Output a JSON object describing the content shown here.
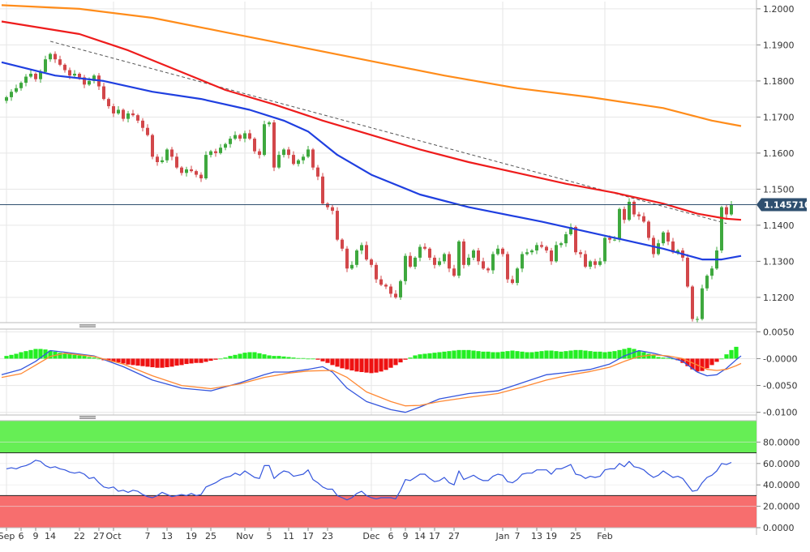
{
  "colors": {
    "bull": "#3ea83e",
    "bear": "#d2474a",
    "sma_fast": "#1f3fe0",
    "sma_mid": "#ee1c1c",
    "sma_slow": "#ff8c1a",
    "trendline": "#555555",
    "price_line": "#2f4f6f",
    "macd_pos": "#22ee22",
    "macd_neg": "#ee1111",
    "macd_line": "#3355dd",
    "signal_line": "#ff8833",
    "rsi_line": "#3355dd",
    "overbought": "#66ee55",
    "oversold": "#f76e6e",
    "grid": "#e6e6e6",
    "axis": "#bbbbbb"
  },
  "chart_data": [
    {
      "type": "candlestick",
      "title": "",
      "ylim": [
        1.113,
        1.202
      ],
      "yticks": [
        "1.2000",
        "1.1900",
        "1.1800",
        "1.1700",
        "1.1600",
        "1.1500",
        "1.1400",
        "1.1300",
        "1.1200"
      ],
      "last_price": "1.145710",
      "trendline": {
        "from": [
          9,
          1.191
        ],
        "to": [
          148,
          1.1405
        ]
      },
      "close": [
        1.1755,
        1.177,
        1.178,
        1.1795,
        1.1812,
        1.182,
        1.1805,
        1.1825,
        1.186,
        1.1875,
        1.186,
        1.1845,
        1.183,
        1.1815,
        1.182,
        1.181,
        1.179,
        1.18,
        1.1815,
        1.1785,
        1.175,
        1.173,
        1.171,
        1.172,
        1.1695,
        1.171,
        1.1705,
        1.169,
        1.167,
        1.165,
        1.159,
        1.1575,
        1.158,
        1.161,
        1.159,
        1.156,
        1.1545,
        1.1555,
        1.155,
        1.154,
        1.153,
        1.1595,
        1.1605,
        1.16,
        1.1615,
        1.1625,
        1.164,
        1.165,
        1.164,
        1.1655,
        1.164,
        1.1605,
        1.1595,
        1.168,
        1.1685,
        1.156,
        1.1595,
        1.161,
        1.1595,
        1.157,
        1.158,
        1.159,
        1.161,
        1.156,
        1.1535,
        1.146,
        1.145,
        1.144,
        1.136,
        1.1335,
        1.128,
        1.129,
        1.133,
        1.1345,
        1.1305,
        1.129,
        1.125,
        1.1235,
        1.123,
        1.121,
        1.12,
        1.1245,
        1.1315,
        1.1285,
        1.131,
        1.134,
        1.1335,
        1.131,
        1.129,
        1.13,
        1.132,
        1.128,
        1.126,
        1.1355,
        1.129,
        1.131,
        1.133,
        1.13,
        1.128,
        1.1275,
        1.132,
        1.1335,
        1.132,
        1.125,
        1.124,
        1.128,
        1.132,
        1.1325,
        1.133,
        1.1345,
        1.134,
        1.133,
        1.13,
        1.1345,
        1.135,
        1.1375,
        1.1395,
        1.1325,
        1.132,
        1.1285,
        1.13,
        1.129,
        1.13,
        1.1365,
        1.136,
        1.136,
        1.1445,
        1.1415,
        1.1465,
        1.143,
        1.1425,
        1.141,
        1.1365,
        1.132,
        1.135,
        1.138,
        1.1355,
        1.1325,
        1.133,
        1.131,
        1.123,
        1.114,
        1.114,
        1.1225,
        1.126,
        1.128,
        1.133,
        1.145,
        1.143,
        1.1457
      ],
      "series": [
        {
          "name": "",
          "type": "line",
          "color": "sma_fast",
          "points": [
            [
              -1,
              1.1852
            ],
            [
              10,
              1.1815
            ],
            [
              20,
              1.18
            ],
            [
              30,
              1.177
            ],
            [
              40,
              1.175
            ],
            [
              50,
              1.172
            ],
            [
              57,
              1.169
            ],
            [
              62,
              1.166
            ],
            [
              68,
              1.1595
            ],
            [
              75,
              1.154
            ],
            [
              85,
              1.1485
            ],
            [
              95,
              1.145
            ],
            [
              110,
              1.141
            ],
            [
              125,
              1.1365
            ],
            [
              135,
              1.1335
            ],
            [
              143,
              1.1305
            ],
            [
              147,
              1.1305
            ],
            [
              151,
              1.1315
            ]
          ]
        },
        {
          "name": "",
          "type": "line",
          "color": "sma_mid",
          "points": [
            [
              -1,
              1.1965
            ],
            [
              15,
              1.193
            ],
            [
              25,
              1.1885
            ],
            [
              35,
              1.183
            ],
            [
              45,
              1.1775
            ],
            [
              55,
              1.1735
            ],
            [
              65,
              1.169
            ],
            [
              75,
              1.165
            ],
            [
              85,
              1.161
            ],
            [
              95,
              1.1575
            ],
            [
              105,
              1.1545
            ],
            [
              115,
              1.1515
            ],
            [
              125,
              1.149
            ],
            [
              135,
              1.146
            ],
            [
              142,
              1.1432
            ],
            [
              148,
              1.1418
            ],
            [
              151,
              1.1415
            ]
          ]
        },
        {
          "name": "",
          "type": "line",
          "color": "sma_slow",
          "points": [
            [
              -1,
              1.201
            ],
            [
              15,
              1.2
            ],
            [
              30,
              1.1975
            ],
            [
              45,
              1.1935
            ],
            [
              60,
              1.1895
            ],
            [
              75,
              1.1855
            ],
            [
              90,
              1.1815
            ],
            [
              105,
              1.178
            ],
            [
              120,
              1.1755
            ],
            [
              135,
              1.1725
            ],
            [
              145,
              1.169
            ],
            [
              151,
              1.1675
            ]
          ]
        }
      ]
    },
    {
      "type": "macd",
      "ylim": [
        -0.0105,
        0.0055
      ],
      "yticks": [
        "0.0050",
        "-0.0000",
        "-0.0050",
        "-0.0100"
      ],
      "histogram": [
        0.0005,
        0.0007,
        0.0009,
        0.0012,
        0.0014,
        0.0016,
        0.0018,
        0.0018,
        0.0017,
        0.0015,
        0.0013,
        0.0011,
        0.001,
        0.0009,
        0.0007,
        0.0006,
        0.0005,
        0.0003,
        0.0002,
        0.0,
        -0.0003,
        -0.0004,
        -0.0006,
        -0.0007,
        -0.0009,
        -0.0011,
        -0.0012,
        -0.0013,
        -0.0014,
        -0.0015,
        -0.0016,
        -0.0017,
        -0.0017,
        -0.0016,
        -0.0015,
        -0.0013,
        -0.0012,
        -0.001,
        -0.0009,
        -0.0008,
        -0.0008,
        -0.0006,
        -0.0004,
        -0.0002,
        0.0,
        0.0002,
        0.0005,
        0.0007,
        0.0009,
        0.0011,
        0.0012,
        0.0012,
        0.001,
        0.0008,
        0.0006,
        0.0005,
        0.0005,
        0.0004,
        0.0003,
        0.0002,
        0.0001,
        0.0001,
        0.0,
        0.0,
        -0.0002,
        -0.0005,
        -0.0008,
        -0.0012,
        -0.0015,
        -0.0018,
        -0.002,
        -0.0022,
        -0.0024,
        -0.0025,
        -0.0026,
        -0.0027,
        -0.0026,
        -0.0024,
        -0.0021,
        -0.0017,
        -0.0012,
        -0.0007,
        -0.0002,
        0.0002,
        0.0006,
        0.0008,
        0.0009,
        0.001,
        0.0011,
        0.0012,
        0.0013,
        0.0014,
        0.0015,
        0.0016,
        0.0016,
        0.0016,
        0.0015,
        0.0014,
        0.0013,
        0.0013,
        0.0012,
        0.0012,
        0.0013,
        0.0014,
        0.0015,
        0.0014,
        0.0013,
        0.0012,
        0.0012,
        0.0013,
        0.0014,
        0.0015,
        0.0015,
        0.0014,
        0.0013,
        0.0014,
        0.0015,
        0.0016,
        0.0016,
        0.0015,
        0.0014,
        0.0013,
        0.0013,
        0.0012,
        0.0013,
        0.0014,
        0.0016,
        0.0018,
        0.002,
        0.0018,
        0.0015,
        0.0012,
        0.0009,
        0.0006,
        0.0003,
        0.0002,
        0.0001,
        0.0,
        -0.0003,
        -0.0008,
        -0.0014,
        -0.002,
        -0.0024,
        -0.0023,
        -0.0018,
        -0.0012,
        -0.0006,
        0.0,
        0.0008,
        0.0016,
        0.0022
      ],
      "series": [
        {
          "name": "",
          "color": "macd_line",
          "points": [
            [
              -1,
              -0.003
            ],
            [
              3,
              -0.002
            ],
            [
              6,
              -0.0005
            ],
            [
              9,
              0.0015
            ],
            [
              12,
              0.0012
            ],
            [
              18,
              0.0005
            ],
            [
              24,
              -0.0015
            ],
            [
              30,
              -0.004
            ],
            [
              36,
              -0.0055
            ],
            [
              42,
              -0.006
            ],
            [
              48,
              -0.0045
            ],
            [
              53,
              -0.003
            ],
            [
              55,
              -0.0025
            ],
            [
              58,
              -0.0025
            ],
            [
              62,
              -0.002
            ],
            [
              65,
              -0.0015
            ],
            [
              67,
              -0.0025
            ],
            [
              70,
              -0.0055
            ],
            [
              74,
              -0.008
            ],
            [
              79,
              -0.0095
            ],
            [
              82,
              -0.01
            ],
            [
              85,
              -0.009
            ],
            [
              89,
              -0.0075
            ],
            [
              95,
              -0.0065
            ],
            [
              101,
              -0.006
            ],
            [
              106,
              -0.0045
            ],
            [
              111,
              -0.003
            ],
            [
              116,
              -0.0025
            ],
            [
              120,
              -0.002
            ],
            [
              124,
              -0.001
            ],
            [
              127,
              0.0005
            ],
            [
              130,
              0.0015
            ],
            [
              133,
              0.001
            ],
            [
              136,
              0.0003
            ],
            [
              139,
              -0.0005
            ],
            [
              142,
              -0.0025
            ],
            [
              144,
              -0.0032
            ],
            [
              146,
              -0.003
            ],
            [
              148,
              -0.0018
            ],
            [
              150,
              -0.0002
            ],
            [
              151,
              0.0005
            ]
          ]
        },
        {
          "name": "",
          "color": "signal_line",
          "points": [
            [
              -1,
              -0.0035
            ],
            [
              3,
              -0.0028
            ],
            [
              6,
              -0.0012
            ],
            [
              9,
              0.0004
            ],
            [
              12,
              0.001
            ],
            [
              18,
              0.0004
            ],
            [
              24,
              -0.001
            ],
            [
              30,
              -0.0032
            ],
            [
              36,
              -0.005
            ],
            [
              42,
              -0.0056
            ],
            [
              48,
              -0.0047
            ],
            [
              53,
              -0.0035
            ],
            [
              58,
              -0.0027
            ],
            [
              62,
              -0.0023
            ],
            [
              67,
              -0.0022
            ],
            [
              70,
              -0.0035
            ],
            [
              74,
              -0.0062
            ],
            [
              79,
              -0.008
            ],
            [
              82,
              -0.0088
            ],
            [
              85,
              -0.0087
            ],
            [
              89,
              -0.008
            ],
            [
              95,
              -0.0072
            ],
            [
              101,
              -0.0065
            ],
            [
              106,
              -0.0053
            ],
            [
              111,
              -0.004
            ],
            [
              116,
              -0.003
            ],
            [
              120,
              -0.0024
            ],
            [
              124,
              -0.0016
            ],
            [
              127,
              -0.0005
            ],
            [
              130,
              0.0004
            ],
            [
              133,
              0.0007
            ],
            [
              136,
              0.0005
            ],
            [
              139,
              0.0
            ],
            [
              142,
              -0.0012
            ],
            [
              144,
              -0.002
            ],
            [
              146,
              -0.0022
            ],
            [
              148,
              -0.002
            ],
            [
              150,
              -0.0013
            ],
            [
              151,
              -0.0009
            ]
          ]
        }
      ]
    },
    {
      "type": "line",
      "ylim": [
        0,
        100
      ],
      "yticks": [
        "80.0000",
        "60.0000",
        "40.0000",
        "20.0000",
        "0.0000"
      ],
      "overbought": 70,
      "oversold": 30,
      "values": [
        55,
        56,
        55,
        57,
        58,
        60,
        63,
        62,
        58,
        56,
        57,
        55,
        54,
        52,
        51,
        52,
        50,
        46,
        47,
        42,
        38,
        37,
        38,
        34,
        35,
        33,
        35,
        34,
        31,
        29,
        28,
        30,
        33,
        31,
        29,
        30,
        31,
        30,
        32,
        30,
        31,
        38,
        40,
        42,
        45,
        47,
        48,
        51,
        49,
        53,
        50,
        47,
        46,
        58,
        58,
        46,
        50,
        53,
        52,
        48,
        49,
        50,
        54,
        45,
        42,
        38,
        36,
        36,
        30,
        28,
        26,
        28,
        32,
        34,
        30,
        28,
        27,
        28,
        28,
        28,
        27,
        35,
        45,
        44,
        47,
        50,
        50,
        46,
        43,
        44,
        47,
        42,
        40,
        53,
        45,
        47,
        49,
        46,
        44,
        44,
        48,
        50,
        49,
        43,
        42,
        45,
        50,
        51,
        51,
        54,
        54,
        54,
        50,
        55,
        55,
        57,
        59,
        50,
        49,
        46,
        48,
        47,
        48,
        54,
        55,
        55,
        60,
        57,
        62,
        57,
        56,
        54,
        50,
        47,
        49,
        53,
        50,
        47,
        48,
        46,
        40,
        34,
        35,
        42,
        47,
        49,
        53,
        60,
        59,
        61
      ]
    }
  ],
  "x_axis": {
    "labels": [
      {
        "i": 0,
        "text": "Sep"
      },
      {
        "i": 3,
        "text": "6"
      },
      {
        "i": 6,
        "text": "9"
      },
      {
        "i": 9,
        "text": "14"
      },
      {
        "i": 15,
        "text": "22"
      },
      {
        "i": 19,
        "text": "27"
      },
      {
        "i": 22,
        "text": "Oct"
      },
      {
        "i": 29,
        "text": "7"
      },
      {
        "i": 33,
        "text": "13"
      },
      {
        "i": 38,
        "text": "19"
      },
      {
        "i": 42,
        "text": "25"
      },
      {
        "i": 49,
        "text": "Nov"
      },
      {
        "i": 54,
        "text": "5"
      },
      {
        "i": 58,
        "text": "11"
      },
      {
        "i": 62,
        "text": "17"
      },
      {
        "i": 66,
        "text": "23"
      },
      {
        "i": 75,
        "text": "Dec"
      },
      {
        "i": 79,
        "text": "6"
      },
      {
        "i": 82,
        "text": "9"
      },
      {
        "i": 85,
        "text": "14"
      },
      {
        "i": 88,
        "text": "17"
      },
      {
        "i": 92,
        "text": "27"
      },
      {
        "i": 102,
        "text": "Jan"
      },
      {
        "i": 105,
        "text": "7"
      },
      {
        "i": 109,
        "text": "13"
      },
      {
        "i": 112,
        "text": "19"
      },
      {
        "i": 117,
        "text": "25"
      },
      {
        "i": 123,
        "text": "Feb"
      }
    ]
  }
}
